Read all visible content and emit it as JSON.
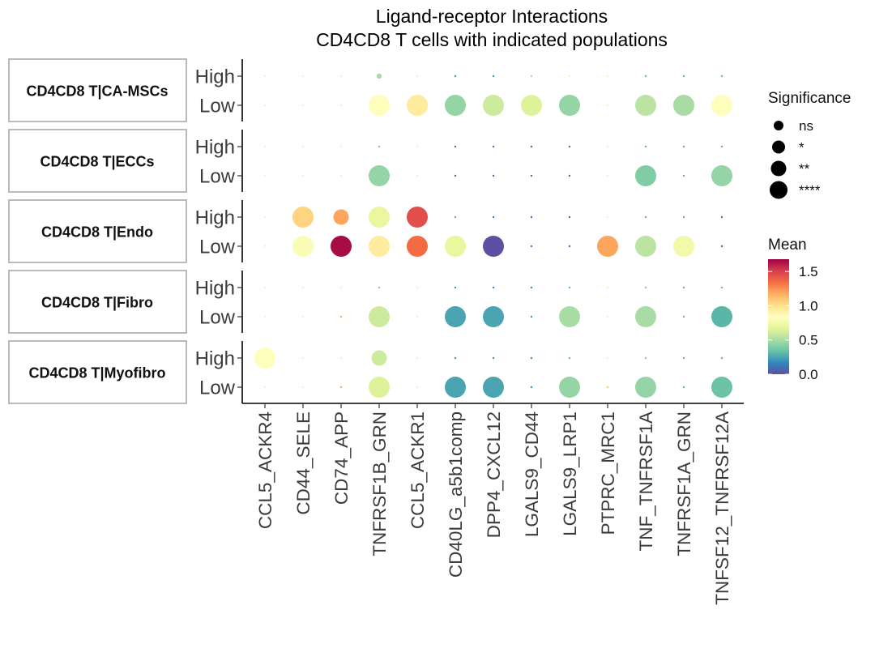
{
  "chart_data": {
    "type": "dot",
    "title": "Ligand-receptor Interactions",
    "subtitle": "CD4CD8 T cells with indicated populations",
    "x_categories": [
      "CCL5_ACKR4",
      "CD44_SELE",
      "CD74_APP",
      "TNFRSF1B_GRN",
      "CCL5_ACKR1",
      "CD40LG_a5b1comp",
      "DPP4_CXCL12",
      "LGALS9_CD44",
      "LGALS9_LRP1",
      "PTPRC_MRC1",
      "TNF_TNFRSF1A",
      "TNFRSF1A_GRN",
      "TNFSF12_TNFRSF12A"
    ],
    "facets": [
      {
        "label": "CD4CD8 T|CA-MSCs",
        "rows": [
          {
            "label": "High",
            "mean": [
              0.9,
              0.9,
              0.9,
              0.5,
              0.9,
              0.2,
              0.2,
              0.5,
              0.9,
              0.9,
              0.3,
              0.3,
              0.3
            ],
            "sig": [
              0,
              0,
              0,
              1,
              0,
              0,
              0,
              0,
              0,
              0,
              0,
              0,
              0
            ]
          },
          {
            "label": "Low",
            "mean": [
              0.9,
              0.9,
              0.9,
              0.85,
              0.95,
              0.45,
              0.6,
              0.65,
              0.45,
              0.9,
              0.55,
              0.5,
              0.85
            ],
            "sig": [
              0,
              0,
              0,
              3,
              3,
              3,
              3,
              3,
              3,
              0,
              3,
              3,
              3
            ]
          }
        ]
      },
      {
        "label": "CD4CD8 T|ECCs",
        "rows": [
          {
            "label": "High",
            "mean": [
              0.9,
              0.9,
              0.9,
              0.4,
              0.9,
              0.1,
              0.05,
              0.1,
              0.05,
              0.9,
              0.3,
              0.3,
              0.3
            ],
            "sig": [
              0,
              0,
              0,
              0,
              0,
              0,
              0,
              0,
              0,
              0,
              0,
              0,
              0
            ]
          },
          {
            "label": "Low",
            "mean": [
              0.9,
              0.9,
              0.9,
              0.45,
              0.9,
              0.1,
              0.05,
              0.1,
              0.05,
              0.9,
              0.4,
              0.3,
              0.45
            ],
            "sig": [
              0,
              0,
              0,
              3,
              0,
              0,
              0,
              0,
              0,
              0,
              3,
              0,
              3
            ]
          }
        ]
      },
      {
        "label": "CD4CD8 T|Endo",
        "rows": [
          {
            "label": "High",
            "mean": [
              0.9,
              1.05,
              1.2,
              0.7,
              1.45,
              0.3,
              0.15,
              0.1,
              0.05,
              0.9,
              0.3,
              0.3,
              0.1
            ],
            "sig": [
              0,
              3,
              2,
              3,
              3,
              0,
              0,
              0,
              0,
              0,
              0,
              0,
              0
            ]
          },
          {
            "label": "Low",
            "mean": [
              0.9,
              0.8,
              1.65,
              0.95,
              1.35,
              0.7,
              0.0,
              0.1,
              0.05,
              1.2,
              0.55,
              0.75,
              0.1
            ],
            "sig": [
              0,
              3,
              3,
              3,
              3,
              3,
              3,
              0,
              0,
              3,
              3,
              3,
              0
            ]
          }
        ]
      },
      {
        "label": "CD4CD8 T|Fibro",
        "rows": [
          {
            "label": "High",
            "mean": [
              0.9,
              0.9,
              0.9,
              0.4,
              0.9,
              0.2,
              0.15,
              0.2,
              0.3,
              0.9,
              0.4,
              0.3,
              0.3
            ],
            "sig": [
              0,
              0,
              0,
              0,
              0,
              0,
              0,
              0,
              0,
              0,
              0,
              0,
              0
            ]
          },
          {
            "label": "Low",
            "mean": [
              0.9,
              0.9,
              1.2,
              0.6,
              0.9,
              0.25,
              0.25,
              0.2,
              0.5,
              0.9,
              0.5,
              0.3,
              0.3
            ],
            "sig": [
              0,
              0,
              0,
              3,
              0,
              3,
              3,
              0,
              3,
              0,
              3,
              0,
              3
            ]
          }
        ]
      },
      {
        "label": "CD4CD8 T|Myofibro",
        "rows": [
          {
            "label": "High",
            "mean": [
              0.85,
              0.9,
              0.9,
              0.6,
              0.9,
              0.2,
              0.2,
              0.2,
              0.3,
              0.9,
              0.4,
              0.3,
              0.3
            ],
            "sig": [
              3,
              0,
              0,
              2,
              0,
              0,
              0,
              0,
              0,
              0,
              0,
              0,
              0
            ]
          },
          {
            "label": "Low",
            "mean": [
              0.9,
              0.9,
              1.2,
              0.65,
              0.9,
              0.25,
              0.25,
              0.2,
              0.45,
              1.1,
              0.45,
              0.3,
              0.35
            ],
            "sig": [
              0,
              0,
              0,
              3,
              0,
              3,
              3,
              0,
              3,
              0,
              3,
              0,
              3
            ]
          }
        ]
      }
    ],
    "legend_significance": {
      "title": "Significance",
      "levels": [
        "ns",
        "*",
        "**",
        "****"
      ]
    },
    "legend_mean": {
      "title": "Mean",
      "ticks": [
        "1.5",
        "1.0",
        "0.5",
        "0.0"
      ],
      "tick_values": [
        1.5,
        1.0,
        0.5,
        0.0
      ],
      "range": [
        0,
        1.68
      ],
      "palette": [
        "#5E4FA2",
        "#3288BD",
        "#66C2A5",
        "#ABDDA4",
        "#E6F598",
        "#FFFFBF",
        "#FEE08B",
        "#FDAE61",
        "#F46D43",
        "#D53E4F",
        "#9E0142"
      ]
    },
    "legend_position": "right",
    "grid": false
  }
}
